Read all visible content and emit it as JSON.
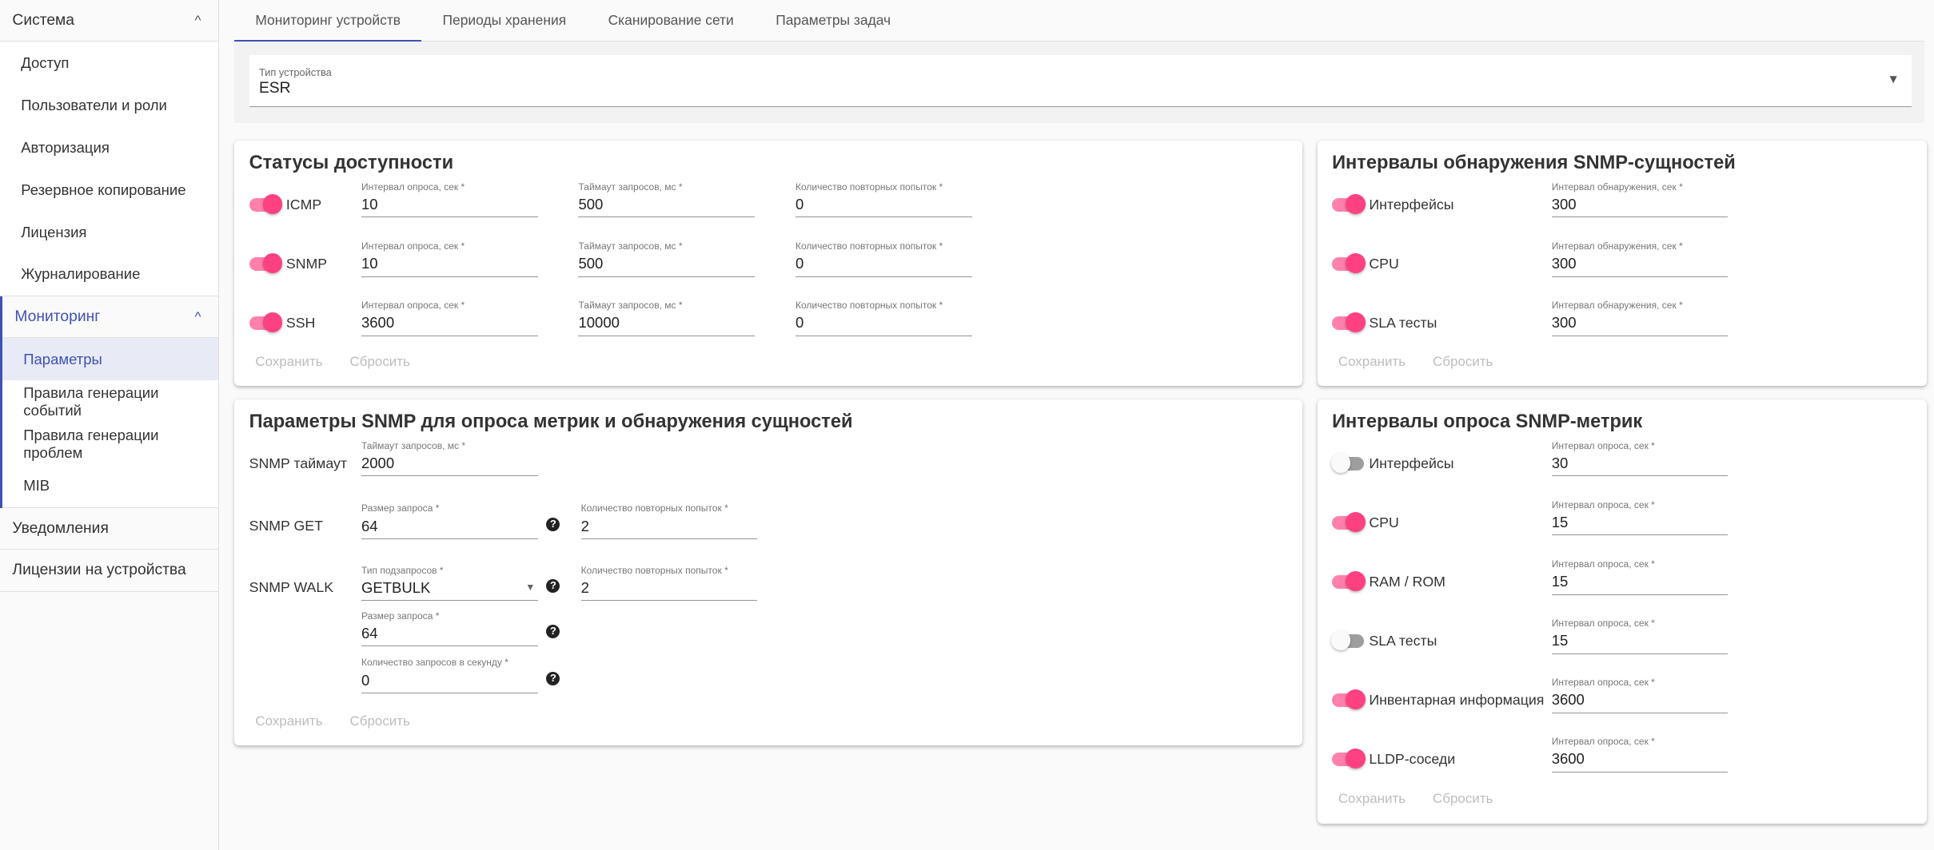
{
  "colors": {
    "accent": "#3f51b5",
    "toggle_on": "#ff4081",
    "toggle_track": "#ff80ab"
  },
  "sidebar": {
    "groups": [
      {
        "label": "Система",
        "icon": "chevron-up-icon",
        "items": [
          "Доступ",
          "Пользователи и роли",
          "Авторизация",
          "Резервное копирование",
          "Лицензия",
          "Журналирование"
        ]
      },
      {
        "label": "Мониторинг",
        "icon": "chevron-up-icon",
        "active": true,
        "selected": 0,
        "items": [
          "Параметры",
          "Правила генерации событий",
          "Правила генерации проблем",
          "MIB"
        ]
      },
      {
        "label": "Уведомления",
        "items": []
      },
      {
        "label": "Лицензии на устройства",
        "items": []
      }
    ]
  },
  "tabs": [
    "Мониторинг устройств",
    "Периоды хранения",
    "Сканирование сети",
    "Параметры задач"
  ],
  "active_tab": 0,
  "device_type": {
    "label": "Тип устройства",
    "value": "ESR"
  },
  "availability": {
    "title": "Статусы доступности",
    "save": "Сохранить",
    "reset": "Сбросить",
    "rows": [
      {
        "name": "ICMP",
        "enabled": true,
        "fields": [
          {
            "label": "Интервал опроса, сек *",
            "value": "10"
          },
          {
            "label": "Таймаут запросов, мс *",
            "value": "500"
          },
          {
            "label": "Количество повторных попыток *",
            "value": "0"
          }
        ]
      },
      {
        "name": "SNMP",
        "enabled": true,
        "fields": [
          {
            "label": "Интервал опроса, сек *",
            "value": "10"
          },
          {
            "label": "Таймаут запросов, мс *",
            "value": "500"
          },
          {
            "label": "Количество повторных попыток *",
            "value": "0"
          }
        ]
      },
      {
        "name": "SSH",
        "enabled": true,
        "fields": [
          {
            "label": "Интервал опроса, сек *",
            "value": "3600"
          },
          {
            "label": "Таймаут запросов, мс *",
            "value": "10000"
          },
          {
            "label": "Количество повторных попыток *",
            "value": "0"
          }
        ]
      }
    ]
  },
  "snmp_params": {
    "title": "Параметры SNMP для опроса метрик и обнаружения сущностей",
    "save": "Сохранить",
    "reset": "Сбросить",
    "rows": [
      {
        "name": "SNMP таймаут",
        "fields": [
          {
            "label": "Таймаут запросов, мс *",
            "value": "2000"
          }
        ]
      },
      {
        "name": "SNMP GET",
        "fields": [
          {
            "label": "Размер запроса *",
            "value": "64",
            "help": true
          },
          {
            "label": "Количество повторных попыток *",
            "value": "2"
          }
        ]
      },
      {
        "name": "SNMP WALK",
        "fields": [
          {
            "label": "Тип подзапросов *",
            "value": "GETBULK",
            "select": true,
            "help": true
          },
          {
            "label": "Количество повторных попыток *",
            "value": "2"
          }
        ]
      },
      {
        "name": "",
        "fields": [
          {
            "label": "Размер запроса *",
            "value": "64",
            "help": true
          }
        ]
      },
      {
        "name": "",
        "fields": [
          {
            "label": "Количество запросов в секунду *",
            "value": "0",
            "help": true
          }
        ]
      }
    ]
  },
  "discovery": {
    "title": "Интервалы обнаружения SNMP-сущностей",
    "save": "Сохранить",
    "reset": "Сбросить",
    "rows": [
      {
        "name": "Интерфейсы",
        "enabled": true,
        "fields": [
          {
            "label": "Интервал обнаружения, сек *",
            "value": "300"
          }
        ]
      },
      {
        "name": "CPU",
        "enabled": true,
        "fields": [
          {
            "label": "Интервал обнаружения, сек *",
            "value": "300"
          }
        ]
      },
      {
        "name": "SLA тесты",
        "enabled": true,
        "fields": [
          {
            "label": "Интервал обнаружения, сек *",
            "value": "300"
          }
        ]
      }
    ]
  },
  "polling": {
    "title": "Интервалы опроса SNMP-метрик",
    "save": "Сохранить",
    "reset": "Сбросить",
    "rows": [
      {
        "name": "Интерфейсы",
        "enabled": false,
        "fields": [
          {
            "label": "Интервал опроса, сек *",
            "value": "30"
          }
        ]
      },
      {
        "name": "CPU",
        "enabled": true,
        "fields": [
          {
            "label": "Интервал опроса, сек *",
            "value": "15"
          }
        ]
      },
      {
        "name": "RAM / ROM",
        "enabled": true,
        "fields": [
          {
            "label": "Интервал опроса, сек *",
            "value": "15"
          }
        ]
      },
      {
        "name": "SLA тесты",
        "enabled": false,
        "fields": [
          {
            "label": "Интервал опроса, сек *",
            "value": "15"
          }
        ]
      },
      {
        "name": "Инвентарная информация",
        "enabled": true,
        "fields": [
          {
            "label": "Интервал опроса, сек *",
            "value": "3600"
          }
        ]
      },
      {
        "name": "LLDP-соседи",
        "enabled": true,
        "fields": [
          {
            "label": "Интервал опроса, сек *",
            "value": "3600"
          }
        ]
      }
    ]
  }
}
